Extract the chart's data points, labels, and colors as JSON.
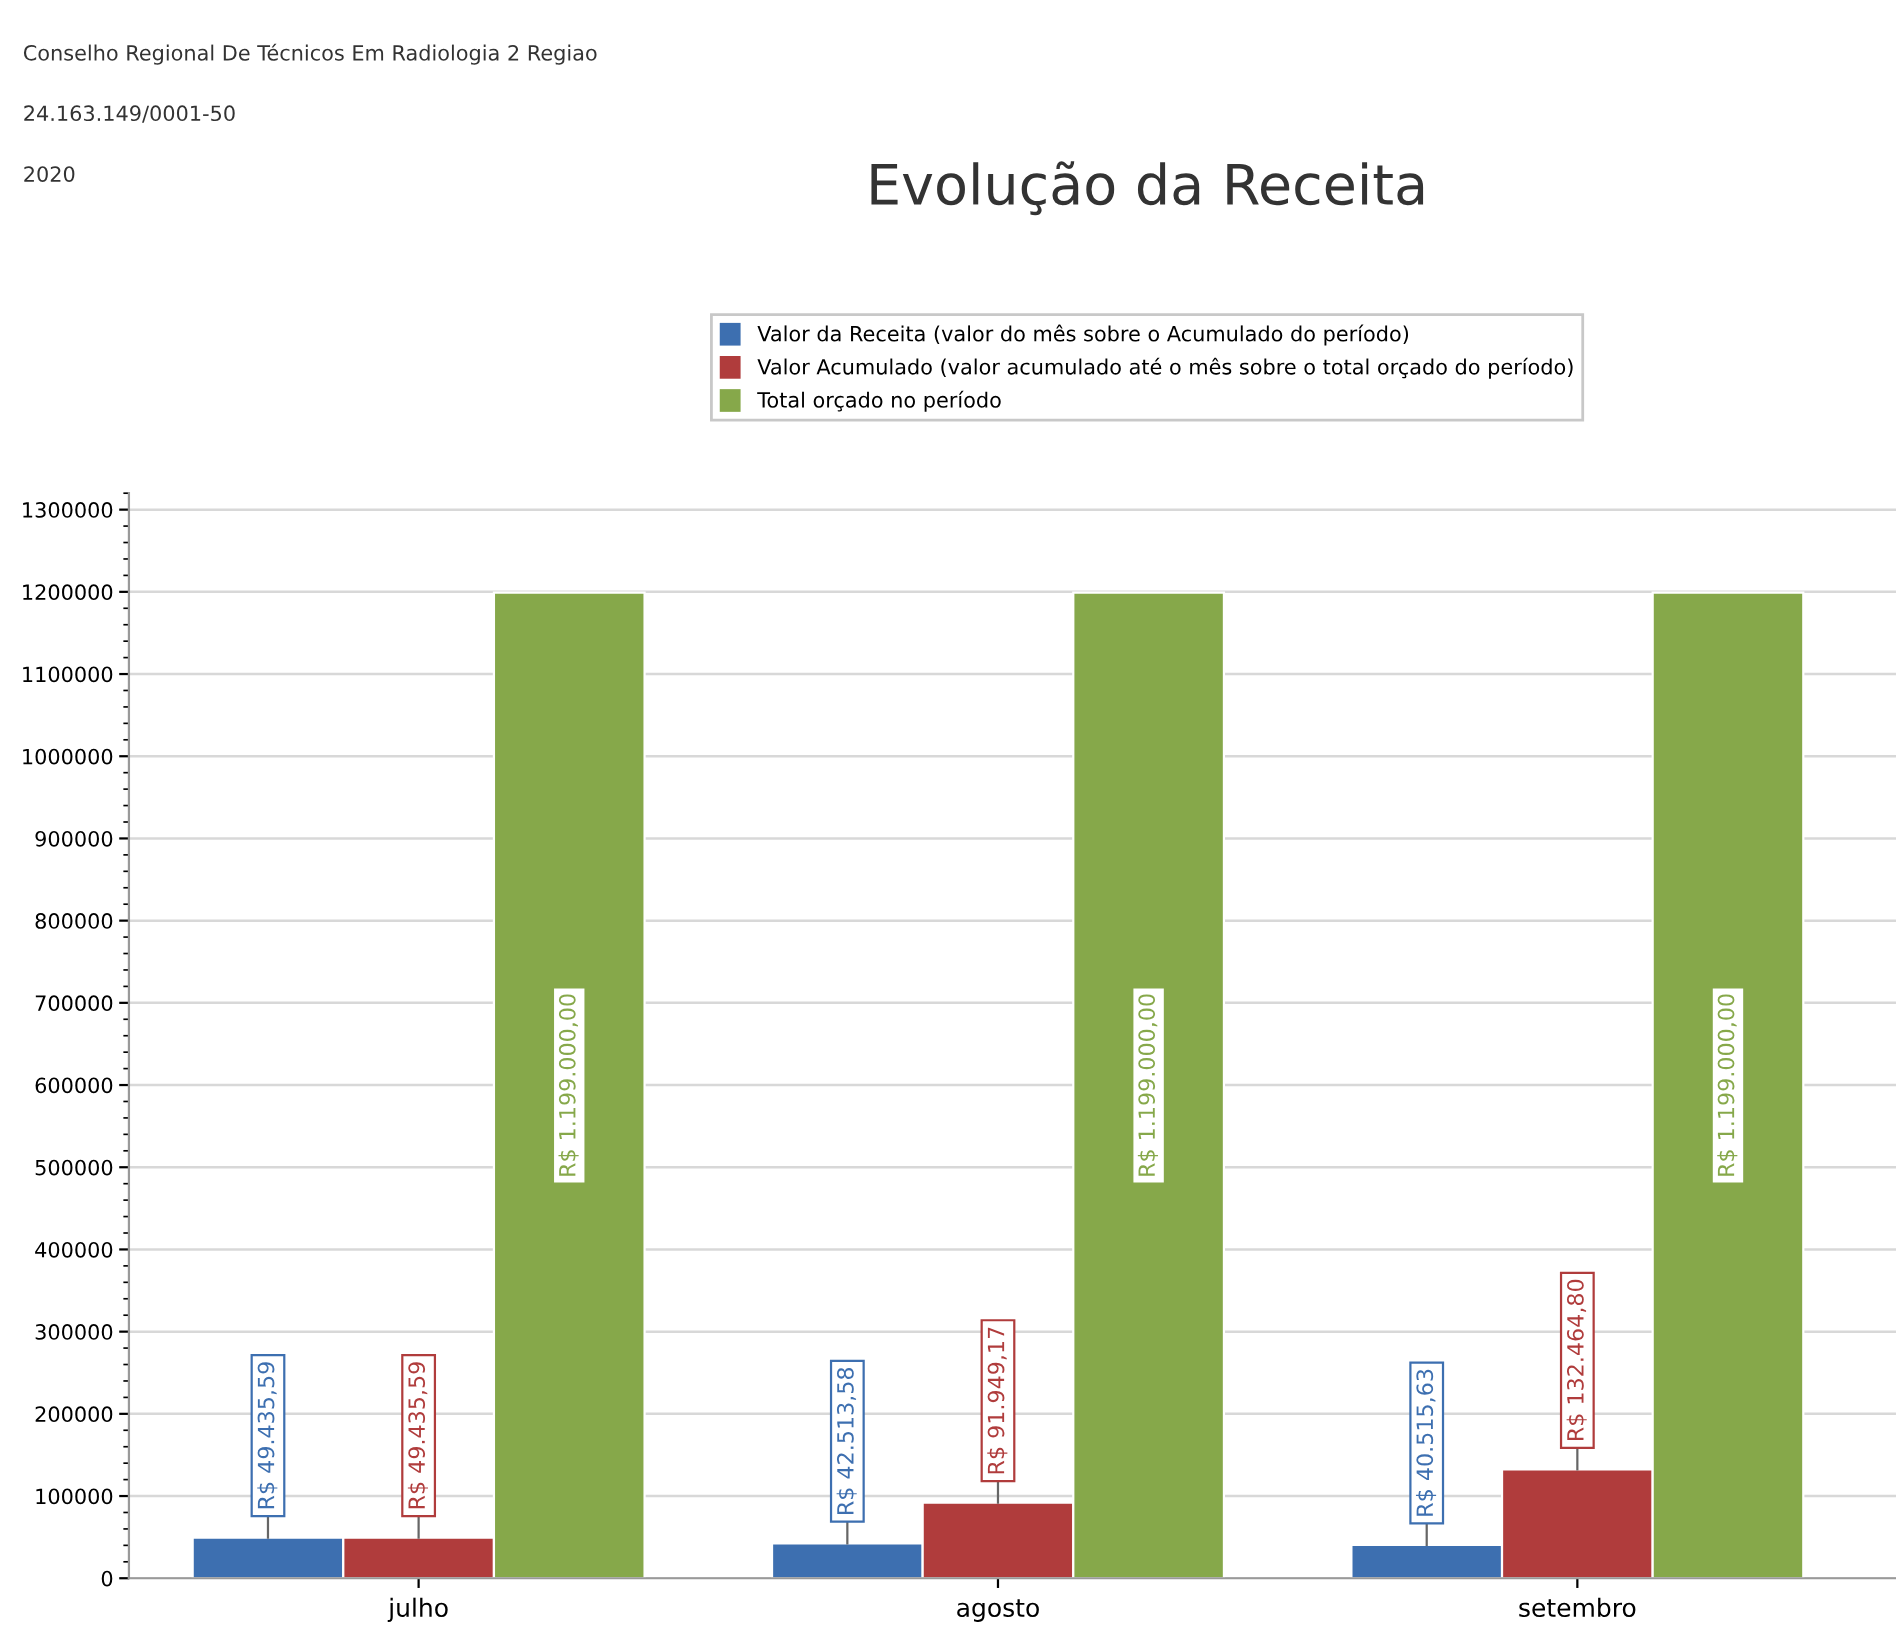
{
  "chart_data": {
    "type": "bar",
    "title": "Evolução da Receita",
    "annotations": [
      "Conselho Regional De Técnicos Em Radiologia 2 Regiao",
      "24.163.149/0001-50",
      "2020"
    ],
    "categories": [
      "julho",
      "agosto",
      "setembro"
    ],
    "series": [
      {
        "name": "Valor da Receita (valor do mês sobre o Acumulado do período)",
        "color": "#3d6fb0",
        "values": [
          49435.59,
          42513.58,
          40515.63
        ],
        "value_labels": [
          "R$ 49.435,59",
          "R$ 42.513,58",
          "R$ 40.515,63"
        ]
      },
      {
        "name": "Valor Acumulado (valor acumulado até o mês sobre o total orçado do período)",
        "color": "#b03c3c",
        "values": [
          49435.59,
          91949.17,
          132464.8
        ],
        "value_labels": [
          "R$ 49.435,59",
          "R$ 91.949,17",
          "R$ 132.464,80"
        ]
      },
      {
        "name": "Total orçado no período",
        "color": "#86a84a",
        "values": [
          1199000,
          1199000,
          1199000
        ],
        "value_labels": [
          "R$ 1.199.000,00",
          "R$ 1.199.000,00",
          "R$ 1.199.000,00"
        ]
      }
    ],
    "ylim": [
      0,
      1320000
    ],
    "yticks": [
      0,
      100000,
      200000,
      300000,
      400000,
      500000,
      600000,
      700000,
      800000,
      900000,
      1000000,
      1100000,
      1200000,
      1300000
    ],
    "grid": "y",
    "legend": "top"
  }
}
